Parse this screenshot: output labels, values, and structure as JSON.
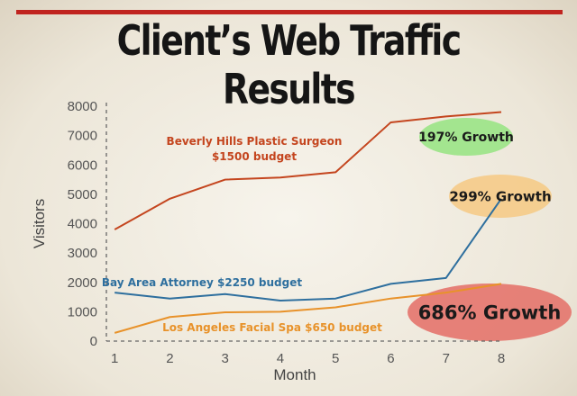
{
  "title": "Client’s Web Traffic Results",
  "colors": {
    "series1": "#c4451e",
    "series2": "#2e6f9e",
    "series3": "#e8922a",
    "accent_bar": "#c0241f",
    "growth1": "#9ee58a",
    "growth2": "#f4cc8c",
    "growth3": "#e57a72"
  },
  "chart_data": {
    "type": "line",
    "xlabel": "Month",
    "ylabel": "Visitors",
    "x": [
      1,
      2,
      3,
      4,
      5,
      6,
      7,
      8
    ],
    "xlim": [
      0.85,
      8
    ],
    "ylim": [
      0,
      8000
    ],
    "yticks": [
      0,
      1000,
      2000,
      3000,
      4000,
      5000,
      6000,
      7000,
      8000
    ],
    "grid": false,
    "series": [
      {
        "name": "Beverly Hills Plastic Surgeon $1500 budget",
        "label_lines": [
          "Beverly Hills Plastic Surgeon",
          "$1500 budget"
        ],
        "values": [
          3800,
          4850,
          5500,
          5570,
          5750,
          7450,
          7650,
          7800
        ]
      },
      {
        "name": "Bay Area Attorney $2250 budget",
        "label_lines": [
          "Bay Area Attorney $2250 budget"
        ],
        "values": [
          1650,
          1450,
          1600,
          1380,
          1450,
          1950,
          2150,
          4850
        ]
      },
      {
        "name": "Los Angeles Facial Spa $650 budget",
        "label_lines": [
          "Los Angeles Facial Spa $650 budget"
        ],
        "values": [
          280,
          820,
          980,
          1000,
          1150,
          1450,
          1650,
          1950
        ]
      }
    ],
    "annotations": [
      {
        "text": "197% Growth",
        "series": 0
      },
      {
        "text": "299% Growth",
        "series": 1
      },
      {
        "text": "686% Growth",
        "series": 2
      }
    ]
  }
}
